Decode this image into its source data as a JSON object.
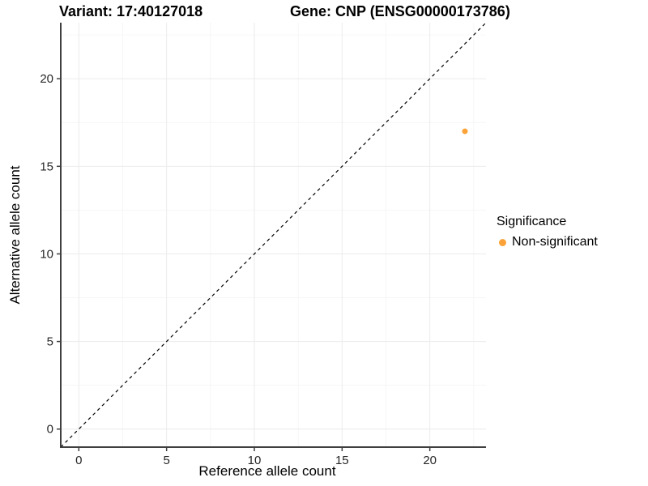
{
  "chart_data": {
    "type": "scatter",
    "titles": [
      "Variant: 17:40127018",
      "Gene: CNP (ENSG00000173786)"
    ],
    "xlabel": "Reference allele count",
    "ylabel": "Alternative allele count",
    "xlim": [
      -1.03,
      23.2
    ],
    "ylim": [
      -1.03,
      23.2
    ],
    "xticks": [
      0,
      5,
      10,
      15,
      20
    ],
    "yticks": [
      0,
      5,
      10,
      15,
      20
    ],
    "xminor": [
      2.5,
      7.5,
      12.5,
      17.5,
      22.5
    ],
    "yminor": [
      2.5,
      7.5,
      12.5,
      17.5,
      22.5
    ],
    "grid": "major+minor",
    "series": [
      {
        "name": "Non-significant",
        "color": "#FBA338",
        "points": [
          {
            "x": 22,
            "y": 17
          }
        ]
      }
    ],
    "reference_line": {
      "slope": 1,
      "intercept": 0,
      "style": "dashed",
      "color": "#000000"
    },
    "legend": {
      "title": "Significance",
      "position": "right",
      "items": [
        {
          "label": "Non-significant",
          "color": "#FBA338"
        }
      ]
    }
  },
  "colors": {
    "point_orange": "#FBA338",
    "axis_line": "#3f3f3f",
    "grid_major": "#ebebeb",
    "grid_minor": "#f6f6f6",
    "dashed_line": "#000000",
    "tick_label": "#262626"
  }
}
